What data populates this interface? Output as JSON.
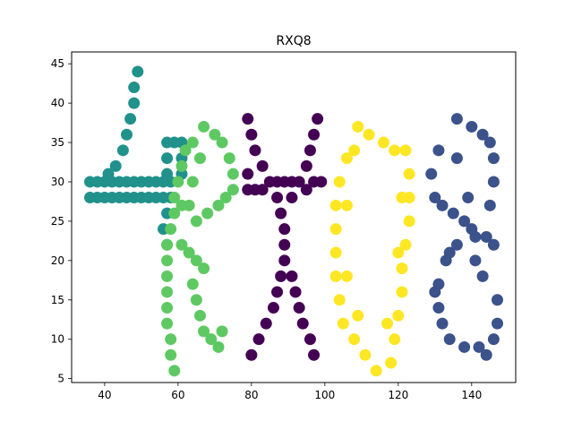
{
  "chart_data": {
    "type": "scatter",
    "title": "RXQ8",
    "xlabel": "",
    "ylabel": "",
    "xlim": [
      31,
      152
    ],
    "ylim": [
      4.5,
      46.5
    ],
    "xticks": [
      40,
      60,
      80,
      100,
      120,
      140
    ],
    "yticks": [
      5,
      10,
      15,
      20,
      25,
      30,
      35,
      40,
      45
    ],
    "grid": false,
    "legend": "none",
    "colors": {
      "series_4": "#21918c",
      "series_R": "#5ec962",
      "series_X": "#440154",
      "series_Q": "#fde725",
      "series_8": "#3b528b"
    },
    "series": [
      {
        "color": "#21918c",
        "points": [
          [
            49,
            44
          ],
          [
            48,
            42
          ],
          [
            48,
            40
          ],
          [
            47,
            38
          ],
          [
            46,
            36
          ],
          [
            45,
            34
          ],
          [
            43,
            32
          ],
          [
            41,
            31
          ],
          [
            36,
            30
          ],
          [
            38,
            30
          ],
          [
            40,
            30
          ],
          [
            42,
            30
          ],
          [
            44,
            30
          ],
          [
            46,
            30
          ],
          [
            48,
            30
          ],
          [
            50,
            30
          ],
          [
            52,
            30
          ],
          [
            54,
            30
          ],
          [
            56,
            30
          ],
          [
            58,
            30
          ],
          [
            36,
            28
          ],
          [
            38,
            28
          ],
          [
            40,
            28
          ],
          [
            42,
            28
          ],
          [
            44,
            28
          ],
          [
            46,
            28
          ],
          [
            48,
            28
          ],
          [
            50,
            28
          ],
          [
            52,
            28
          ],
          [
            54,
            28
          ],
          [
            56,
            28
          ],
          [
            58,
            28
          ],
          [
            57,
            35
          ],
          [
            59,
            35
          ],
          [
            61,
            35
          ],
          [
            57,
            33
          ],
          [
            57,
            31
          ],
          [
            57,
            26
          ],
          [
            56,
            24
          ],
          [
            57,
            22
          ],
          [
            61,
            33
          ],
          [
            61,
            31
          ]
        ]
      },
      {
        "color": "#5ec962",
        "points": [
          [
            67,
            37
          ],
          [
            70,
            36
          ],
          [
            64,
            35
          ],
          [
            72,
            35
          ],
          [
            62,
            34
          ],
          [
            74,
            33
          ],
          [
            61,
            32
          ],
          [
            75,
            31
          ],
          [
            75,
            29
          ],
          [
            73,
            28
          ],
          [
            71,
            27
          ],
          [
            68,
            26
          ],
          [
            65,
            25
          ],
          [
            60,
            30
          ],
          [
            59,
            28
          ],
          [
            59,
            26
          ],
          [
            58,
            24
          ],
          [
            57,
            22
          ],
          [
            57,
            20
          ],
          [
            57,
            18
          ],
          [
            57,
            16
          ],
          [
            57,
            14
          ],
          [
            57,
            12
          ],
          [
            58,
            10
          ],
          [
            58,
            8
          ],
          [
            59,
            6
          ],
          [
            61,
            22
          ],
          [
            63,
            21
          ],
          [
            65,
            20
          ],
          [
            67,
            19
          ],
          [
            64,
            17
          ],
          [
            65,
            15
          ],
          [
            66,
            13
          ],
          [
            67,
            11
          ],
          [
            69,
            10
          ],
          [
            71,
            9
          ],
          [
            72,
            11
          ],
          [
            61,
            27
          ],
          [
            63,
            27
          ],
          [
            64,
            30
          ],
          [
            66,
            33
          ]
        ]
      },
      {
        "color": "#440154",
        "points": [
          [
            79,
            38
          ],
          [
            80,
            36
          ],
          [
            81,
            34
          ],
          [
            83,
            32
          ],
          [
            85,
            30
          ],
          [
            87,
            28
          ],
          [
            88,
            26
          ],
          [
            89,
            24
          ],
          [
            89,
            22
          ],
          [
            89,
            20
          ],
          [
            88,
            18
          ],
          [
            87,
            16
          ],
          [
            86,
            14
          ],
          [
            84,
            12
          ],
          [
            82,
            10
          ],
          [
            80,
            8
          ],
          [
            98,
            38
          ],
          [
            97,
            36
          ],
          [
            96,
            34
          ],
          [
            95,
            32
          ],
          [
            93,
            30
          ],
          [
            91,
            28
          ],
          [
            91,
            18
          ],
          [
            92,
            16
          ],
          [
            93,
            14
          ],
          [
            94,
            12
          ],
          [
            96,
            10
          ],
          [
            97,
            8
          ],
          [
            79,
            31
          ],
          [
            79,
            29
          ],
          [
            81,
            29
          ],
          [
            83,
            29
          ],
          [
            87,
            30
          ],
          [
            89,
            30
          ],
          [
            91,
            30
          ],
          [
            95,
            29
          ],
          [
            97,
            30
          ],
          [
            99,
            30
          ]
        ]
      },
      {
        "color": "#fde725",
        "points": [
          [
            109,
            37
          ],
          [
            112,
            36
          ],
          [
            116,
            35
          ],
          [
            119,
            34
          ],
          [
            122,
            34
          ],
          [
            106,
            33
          ],
          [
            104,
            30
          ],
          [
            103,
            27
          ],
          [
            103,
            24
          ],
          [
            103,
            21
          ],
          [
            103,
            18
          ],
          [
            104,
            15
          ],
          [
            105,
            12
          ],
          [
            108,
            10
          ],
          [
            111,
            8
          ],
          [
            114,
            6
          ],
          [
            123,
            31
          ],
          [
            123,
            28
          ],
          [
            123,
            25
          ],
          [
            122,
            22
          ],
          [
            121,
            19
          ],
          [
            121,
            16
          ],
          [
            120,
            13
          ],
          [
            119,
            10
          ],
          [
            118,
            7
          ],
          [
            108,
            34
          ],
          [
            106,
            27
          ],
          [
            106,
            18
          ],
          [
            109,
            13
          ],
          [
            117,
            12
          ],
          [
            121,
            28
          ],
          [
            120,
            21
          ]
        ]
      },
      {
        "color": "#3b528b",
        "points": [
          [
            136,
            38
          ],
          [
            140,
            37
          ],
          [
            143,
            36
          ],
          [
            145,
            35
          ],
          [
            131,
            34
          ],
          [
            129,
            31
          ],
          [
            130,
            28
          ],
          [
            132,
            27
          ],
          [
            135,
            26
          ],
          [
            138,
            25
          ],
          [
            140,
            24
          ],
          [
            144,
            23
          ],
          [
            146,
            22
          ],
          [
            146,
            33
          ],
          [
            146,
            30
          ],
          [
            145,
            27
          ],
          [
            141,
            23
          ],
          [
            136,
            22
          ],
          [
            133,
            20
          ],
          [
            131,
            17
          ],
          [
            131,
            14
          ],
          [
            132,
            12
          ],
          [
            134,
            10
          ],
          [
            138,
            9
          ],
          [
            142,
            9
          ],
          [
            146,
            10
          ],
          [
            147,
            12
          ],
          [
            147,
            15
          ],
          [
            143,
            18
          ],
          [
            141,
            20
          ],
          [
            144,
            8
          ],
          [
            136,
            33
          ],
          [
            139,
            28
          ],
          [
            134,
            21
          ],
          [
            130,
            16
          ]
        ]
      }
    ]
  }
}
